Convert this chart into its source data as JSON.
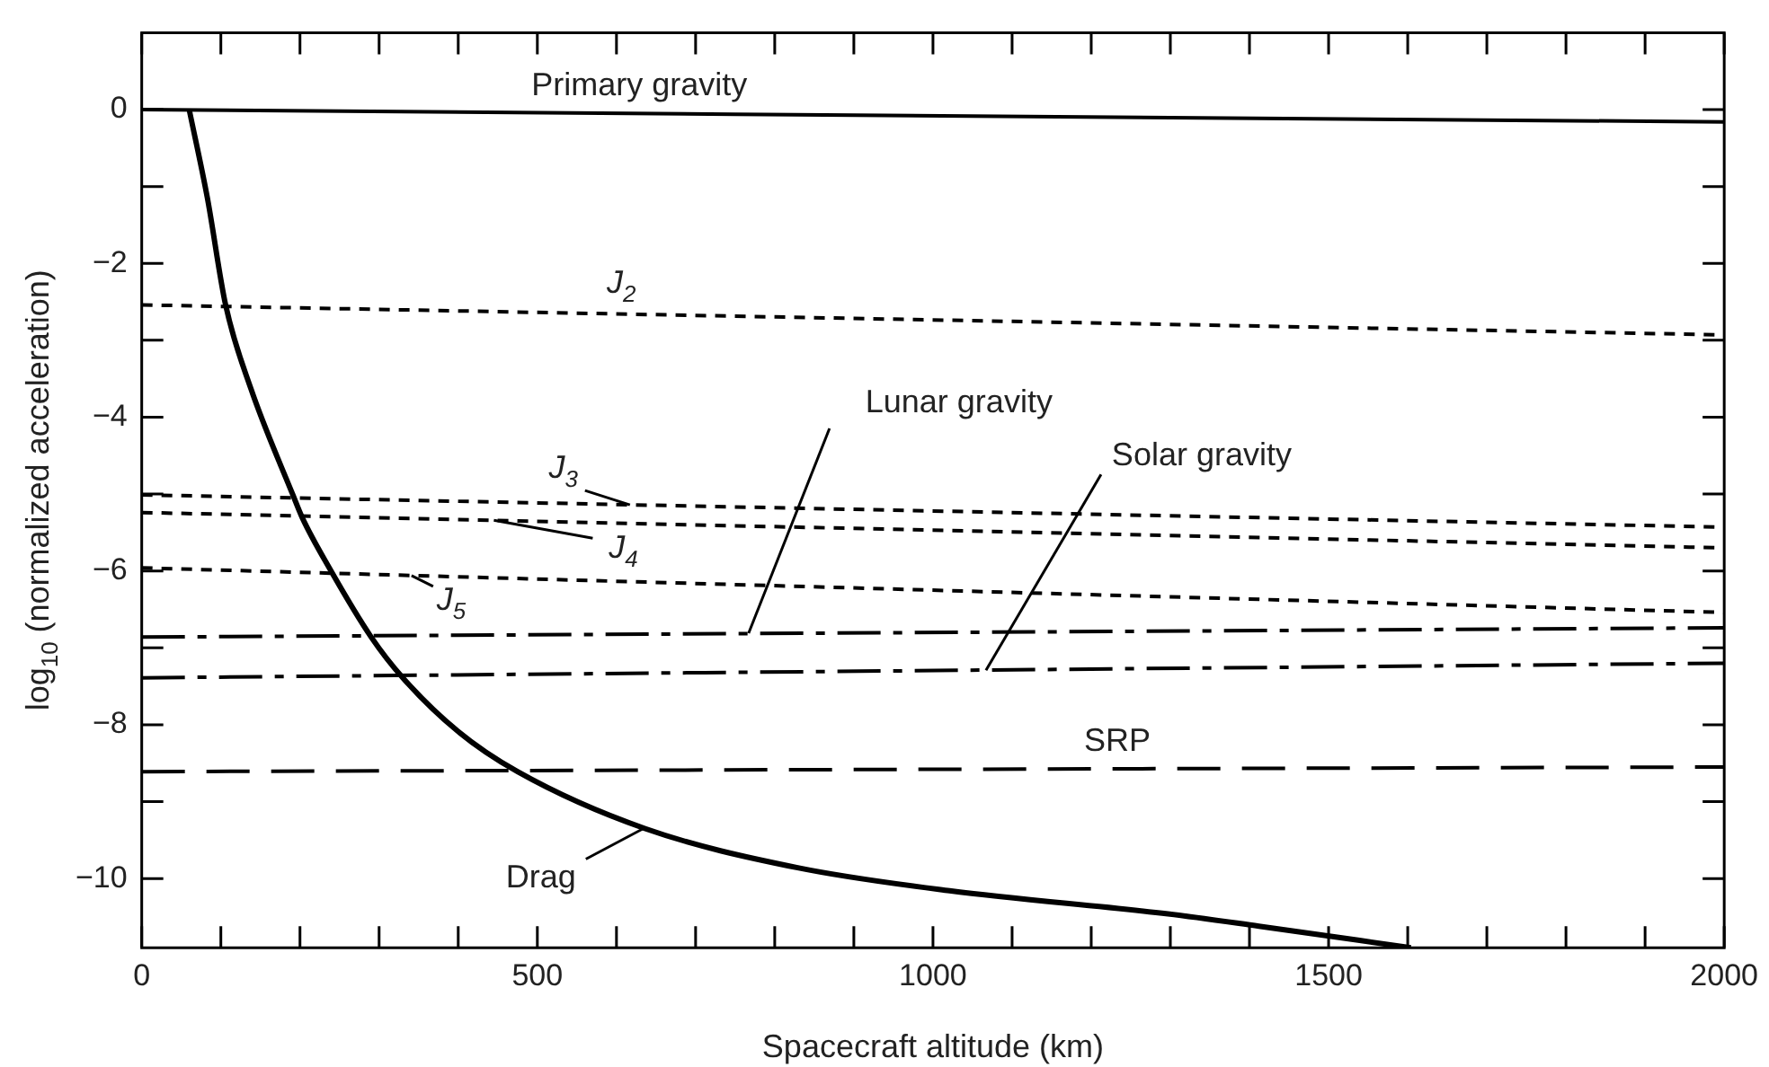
{
  "chart_data": {
    "type": "line",
    "xlabel": "Spacecraft altitude (km)",
    "ylabel": "log$_{10}$ (normalized acceleration)",
    "x": [
      0,
      2000
    ],
    "xlim": [
      0,
      2000
    ],
    "ylim": [
      -10.9,
      1
    ],
    "xticks": [
      0,
      {
        "value": 100,
        "label": null
      },
      {
        "value": 200,
        "label": null
      },
      {
        "value": 300,
        "label": null
      },
      {
        "value": 400,
        "label": null
      },
      500,
      {
        "value": 600,
        "label": null
      },
      {
        "value": 700,
        "label": null
      },
      {
        "value": 800,
        "label": null
      },
      {
        "value": 900,
        "label": null
      },
      1000,
      {
        "value": 1100,
        "label": null
      },
      {
        "value": 1200,
        "label": null
      },
      {
        "value": 1300,
        "label": null
      },
      {
        "value": 1400,
        "label": null
      },
      1500,
      {
        "value": 1600,
        "label": null
      },
      {
        "value": 1700,
        "label": null
      },
      {
        "value": 1800,
        "label": null
      },
      {
        "value": 1900,
        "label": null
      },
      2000
    ],
    "yticks": [
      {
        "value": -10,
        "label": "−10"
      },
      {
        "value": -9,
        "label": null
      },
      {
        "value": -8,
        "label": "−8"
      },
      {
        "value": -7,
        "label": null
      },
      {
        "value": -6,
        "label": "−6"
      },
      {
        "value": -5,
        "label": null
      },
      {
        "value": -4,
        "label": "−4"
      },
      {
        "value": -3,
        "label": null
      },
      {
        "value": -2,
        "label": "−2"
      },
      {
        "value": -1,
        "label": null
      },
      0
    ],
    "marker": "none",
    "grid": false,
    "legend": false,
    "series": [
      {
        "color": "#000000",
        "line_style": "solid",
        "values": [
          0,
          -0.16
        ]
      },
      {
        "color": "#000000",
        "line_style": "dashed",
        "values": [
          -2.54,
          -2.93
        ]
      },
      {
        "color": "#000000",
        "line_style": "dashed",
        "values": [
          -5.01,
          -5.43
        ]
      },
      {
        "color": "#000000",
        "line_style": "dashed",
        "values": [
          -5.24,
          -5.7
        ]
      },
      {
        "color": "#000000",
        "line_style": "dashed",
        "values": [
          -5.96,
          -6.54
        ]
      },
      {
        "color": "#000000",
        "line_style": "dashdot",
        "values": [
          -6.86,
          -6.74
        ]
      },
      {
        "color": "#000000",
        "line_style": "dashdot",
        "values": [
          -7.39,
          -7.2
        ]
      },
      {
        "color": "#000000",
        "line_style": "longdash",
        "values": [
          -8.61,
          -8.55
        ]
      },
      {
        "color": "#000000",
        "line_style": "solid",
        "x": [
          60,
          83,
          106,
          138,
          191,
          203,
          237,
          290,
          330,
          399,
          475,
          636,
          829,
          1021,
          1297,
          1412,
          1604
        ],
        "values": [
          0,
          -1.15,
          -2.54,
          -3.63,
          -5.01,
          -5.31,
          -5.96,
          -6.86,
          -7.39,
          -8.08,
          -8.61,
          -9.35,
          -9.86,
          -10.16,
          -10.46,
          -10.62,
          -10.9
        ]
      }
    ],
    "annotations": [
      {
        "text": "Primary gravity",
        "x": 629,
        "y": -0.05
      },
      {
        "text": "J$_{2}$",
        "x": 606,
        "y": -2.66
      },
      {
        "text": "J$_{3}$",
        "x": 617,
        "y": -5.14
      },
      {
        "text": "J$_{4}$",
        "x": 445,
        "y": -5.34
      },
      {
        "text": "J$_{5}$",
        "x": 341,
        "y": -6.06
      },
      {
        "text": "Lunar gravity",
        "x": 767,
        "y": -6.81
      },
      {
        "text": "Solar gravity",
        "x": 1067,
        "y": -7.29
      },
      {
        "text": "SRP",
        "x": 1233,
        "y": -8.57
      },
      {
        "text": "Drag",
        "x": 634,
        "y": -9.35
      }
    ]
  }
}
